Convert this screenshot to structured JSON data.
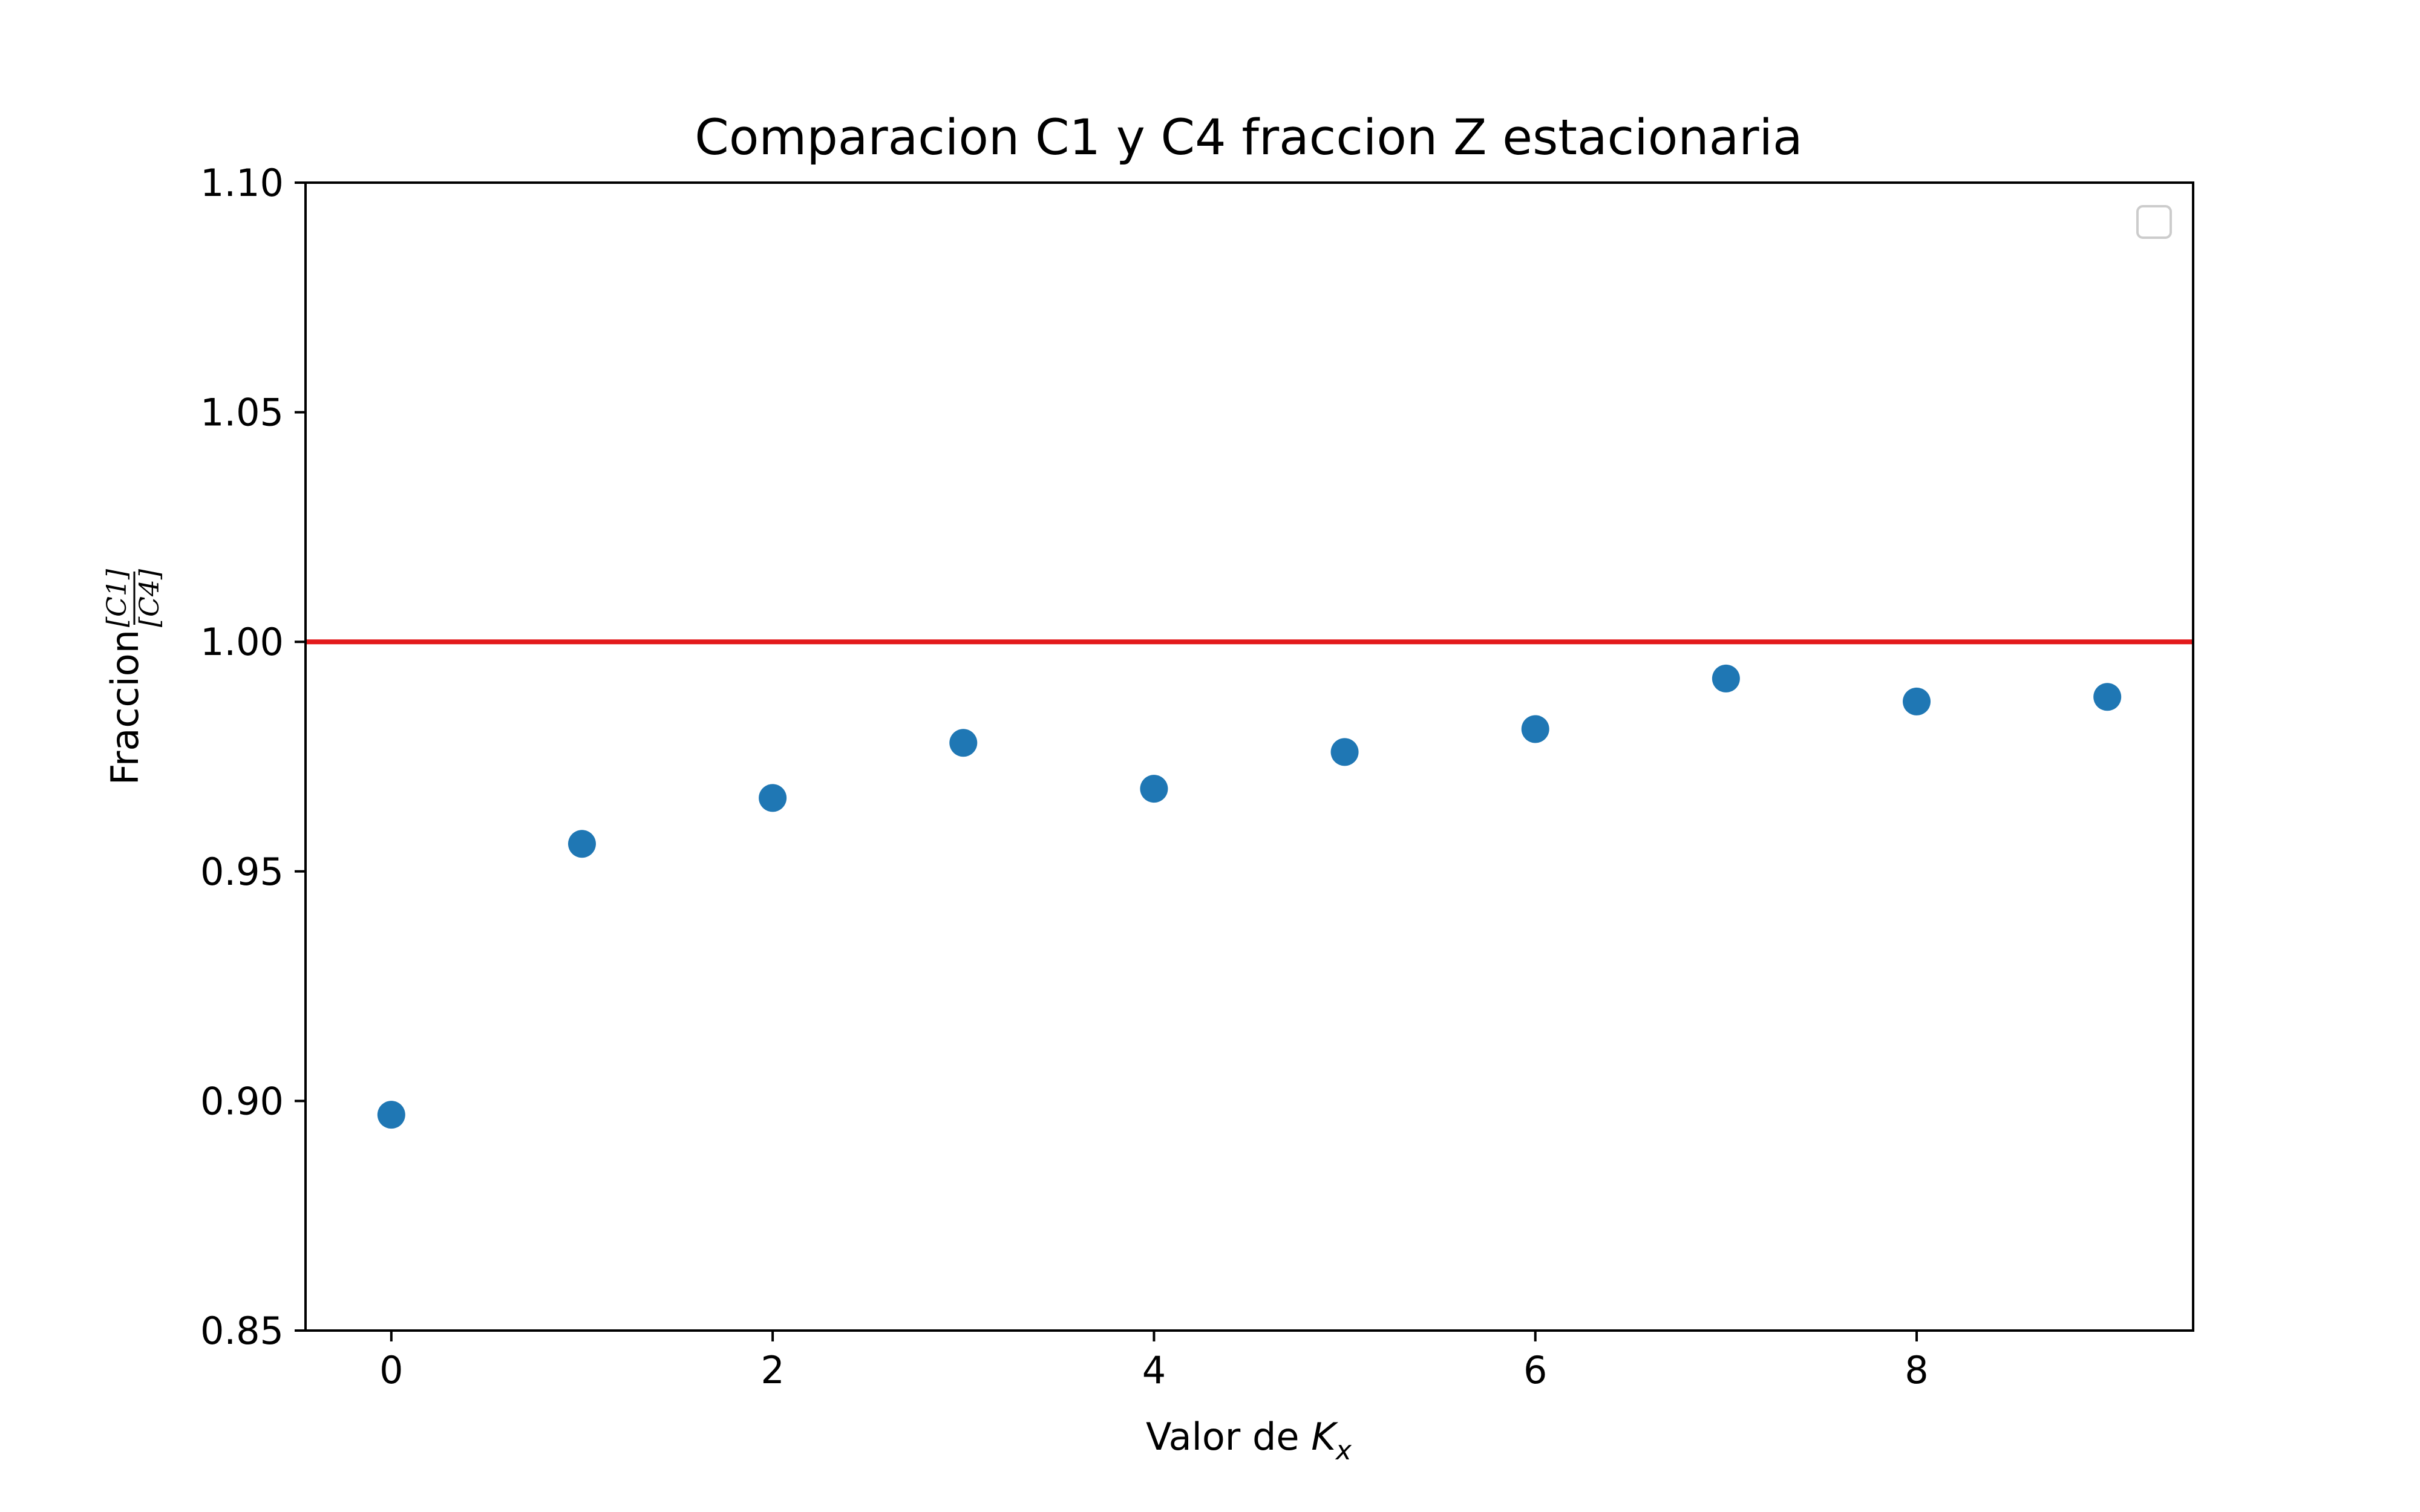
{
  "chart_data": {
    "type": "scatter",
    "title": "Comparacion C1 y C4 fraccion Z estacionaria",
    "xlabel": {
      "text": "Valor de ",
      "symbol": "K",
      "subscript": "x"
    },
    "ylabel": {
      "text": "Fraccion ",
      "numerator": "[C1]",
      "denominator": "[C4]"
    },
    "xlim": [
      -0.45,
      9.45
    ],
    "ylim": [
      0.85,
      1.1
    ],
    "xticks": [
      0,
      2,
      4,
      6,
      8
    ],
    "yticks": [
      0.85,
      0.9,
      0.95,
      1.0,
      1.05,
      1.1
    ],
    "ytick_labels": [
      "0.85",
      "0.90",
      "0.95",
      "1.00",
      "1.05",
      "1.10"
    ],
    "grid": false,
    "legend": {
      "placement": "top-right",
      "entries": []
    },
    "reference_line": {
      "y": 1.0,
      "color": "#e31a1c"
    },
    "series": [
      {
        "color": "#1f77b4",
        "x": [
          0,
          1,
          2,
          3,
          4,
          5,
          6,
          7,
          8,
          9
        ],
        "y": [
          0.897,
          0.956,
          0.966,
          0.978,
          0.968,
          0.976,
          0.981,
          0.992,
          0.987,
          0.988
        ]
      }
    ]
  }
}
